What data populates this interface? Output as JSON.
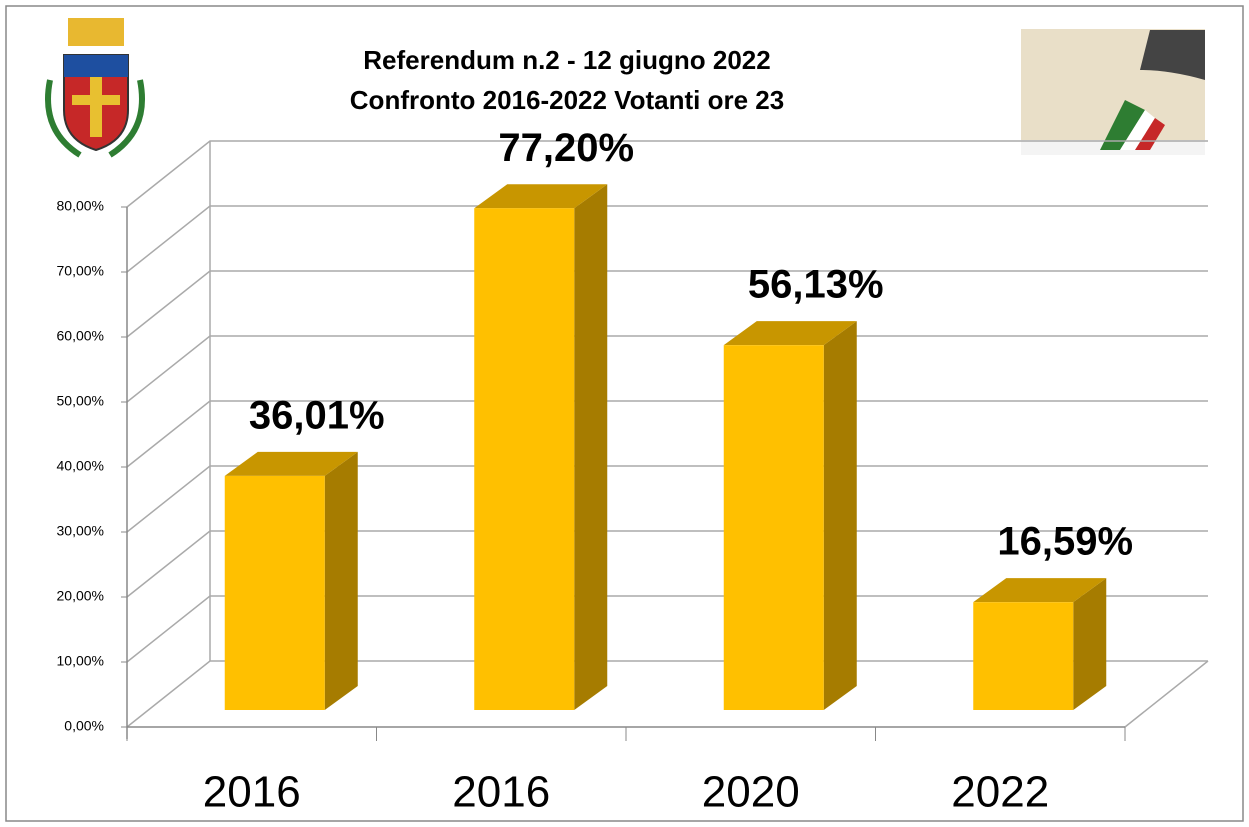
{
  "chart_data": {
    "type": "bar3d",
    "title": [
      "Referendum  n.2 - 12 giugno 2022",
      "Confronto 2016-2022  Votanti ore 23"
    ],
    "categories": [
      "2016",
      "2016",
      "2020",
      "2022"
    ],
    "values": [
      36.01,
      77.2,
      56.13,
      16.59
    ],
    "value_labels": [
      "36,01%",
      "77,20%",
      "56,13%",
      "16,59%"
    ],
    "color": "#FFC000",
    "ylim": [
      0,
      80
    ],
    "yticks": [
      {
        "value": 0,
        "label": "0,00%"
      },
      {
        "value": 10,
        "label": "10,00%"
      },
      {
        "value": 20,
        "label": "20,00%"
      },
      {
        "value": 30,
        "label": "30,00%"
      },
      {
        "value": 40,
        "label": "40,00%"
      },
      {
        "value": 50,
        "label": "50,00%"
      },
      {
        "value": 60,
        "label": "60,00%"
      },
      {
        "value": 70,
        "label": "70,00%"
      },
      {
        "value": 80,
        "label": "80,00%"
      }
    ],
    "grid": true
  }
}
